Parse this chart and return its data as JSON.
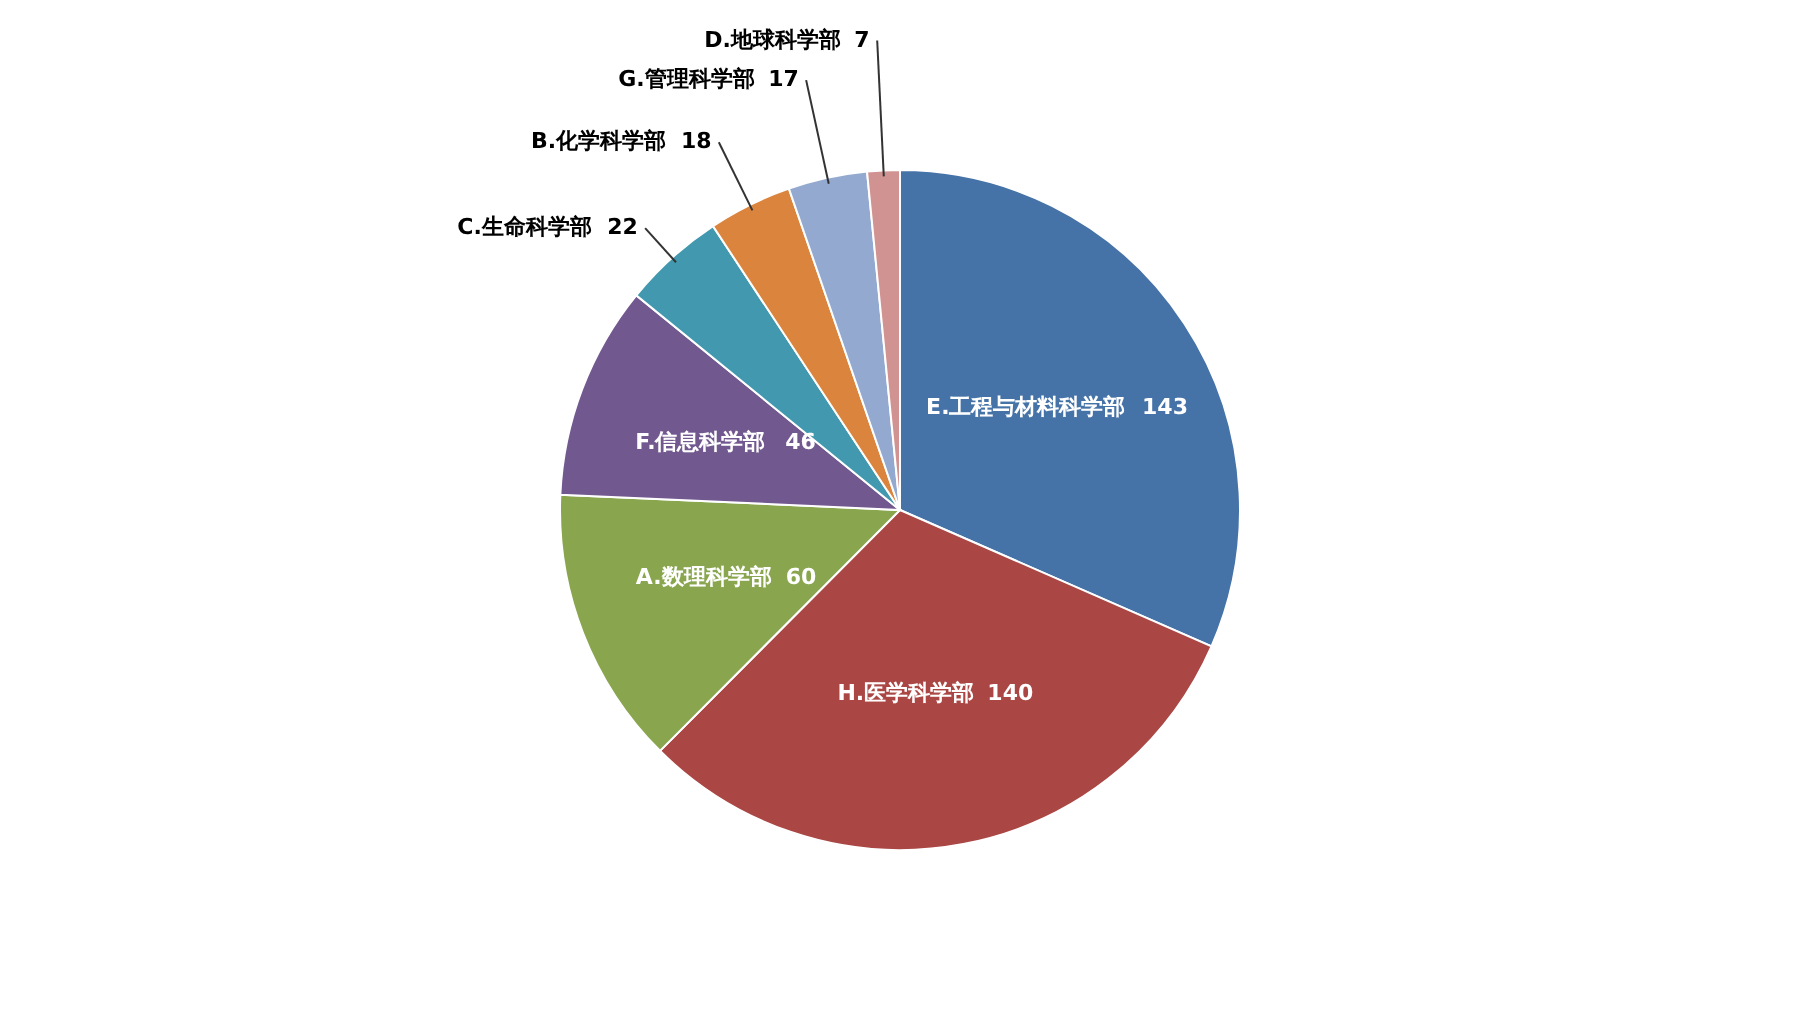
{
  "chart_data": {
    "type": "pie",
    "categories": [
      "E.工程与材料科学部",
      "H.医学科学部",
      "A.数理科学部",
      "F.信息科学部",
      "C.生命科学部",
      "B.化学科学部",
      "G.管理科学部",
      "D.地球科学部"
    ],
    "values": [
      143,
      140,
      60,
      46,
      22,
      18,
      17,
      7
    ],
    "colors": [
      "#4572a7",
      "#aa4643",
      "#89a54e",
      "#71588f",
      "#4198af",
      "#db843d",
      "#93a9cf",
      "#d19392"
    ],
    "data_labels": true
  }
}
